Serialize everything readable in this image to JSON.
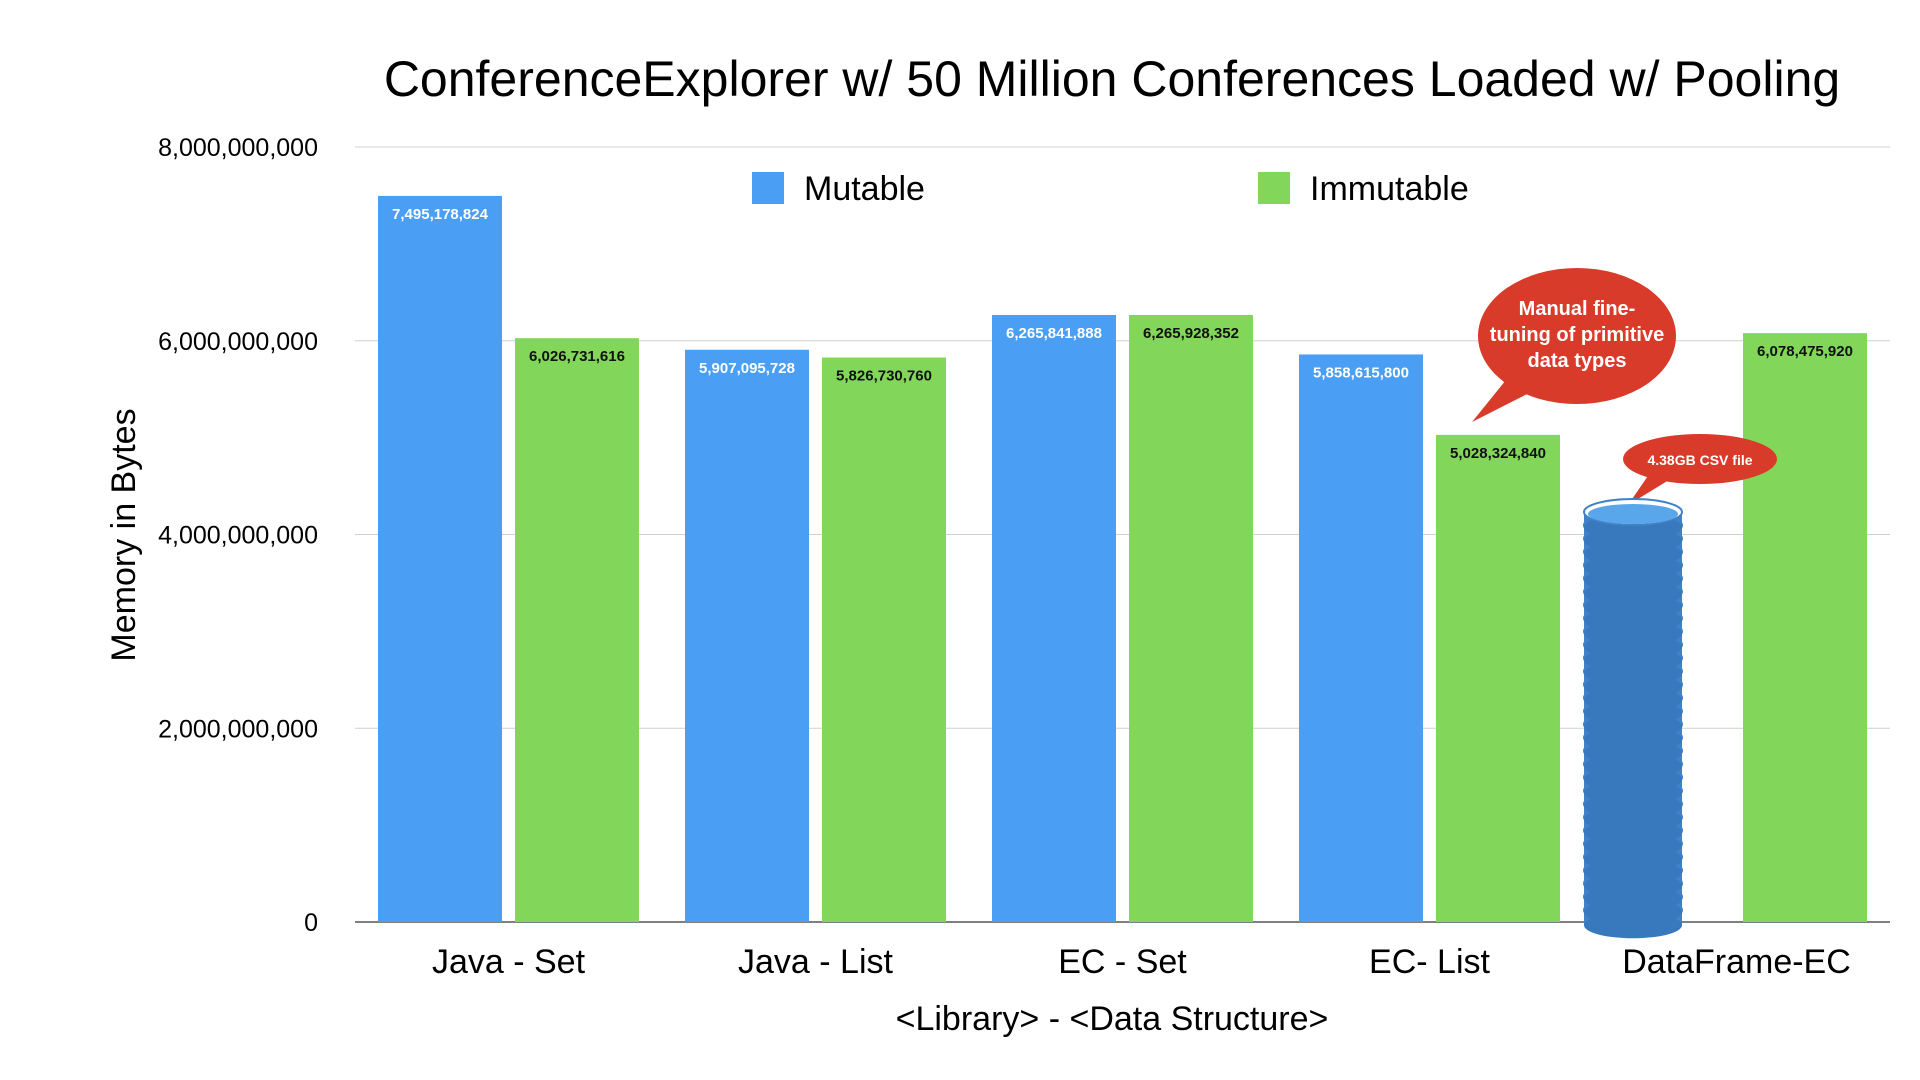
{
  "chart_data": {
    "type": "bar",
    "title": "ConferenceExplorer w/ 50 Million Conferences Loaded w/ Pooling",
    "xlabel": "<Library> - <Data Structure>",
    "ylabel": "Memory in Bytes",
    "ylim": [
      0,
      8000000000
    ],
    "yticks": [
      {
        "value": 0,
        "label": "0"
      },
      {
        "value": 2000000000,
        "label": "2,000,000,000"
      },
      {
        "value": 4000000000,
        "label": "4,000,000,000"
      },
      {
        "value": 6000000000,
        "label": "6,000,000,000"
      },
      {
        "value": 8000000000,
        "label": "8,000,000,000"
      }
    ],
    "grid": true,
    "legend_position": "top",
    "categories": [
      "Java - Set",
      "Java - List",
      "EC - Set",
      "EC- List",
      "DataFrame-EC"
    ],
    "series": [
      {
        "name": "Mutable",
        "color": "#4a9ff5",
        "values": [
          7495178824,
          5907095728,
          6265841888,
          5858615800,
          null
        ],
        "labels": [
          "7,495,178,824",
          "5,907,095,728",
          "6,265,841,888",
          "5,858,615,800",
          null
        ]
      },
      {
        "name": "Immutable",
        "color": "#82d65a",
        "values": [
          6026731616,
          5826730760,
          6265928352,
          5028324840,
          6078475920
        ],
        "labels": [
          "6,026,731,616",
          "5,826,730,760",
          "6,265,928,352",
          "5,028,324,840",
          "6,078,475,920"
        ]
      }
    ],
    "annotations": [
      {
        "text": "Manual fine-tuning of primitive data types",
        "lines": [
          "Manual fine-",
          "tuning of primitive",
          "data types"
        ],
        "target": "EC- List / Immutable"
      },
      {
        "text": "4.38GB CSV file",
        "target": "DataFrame-EC / Mutable",
        "icon": "database-stack-icon",
        "color": "#d93b2a"
      }
    ]
  }
}
